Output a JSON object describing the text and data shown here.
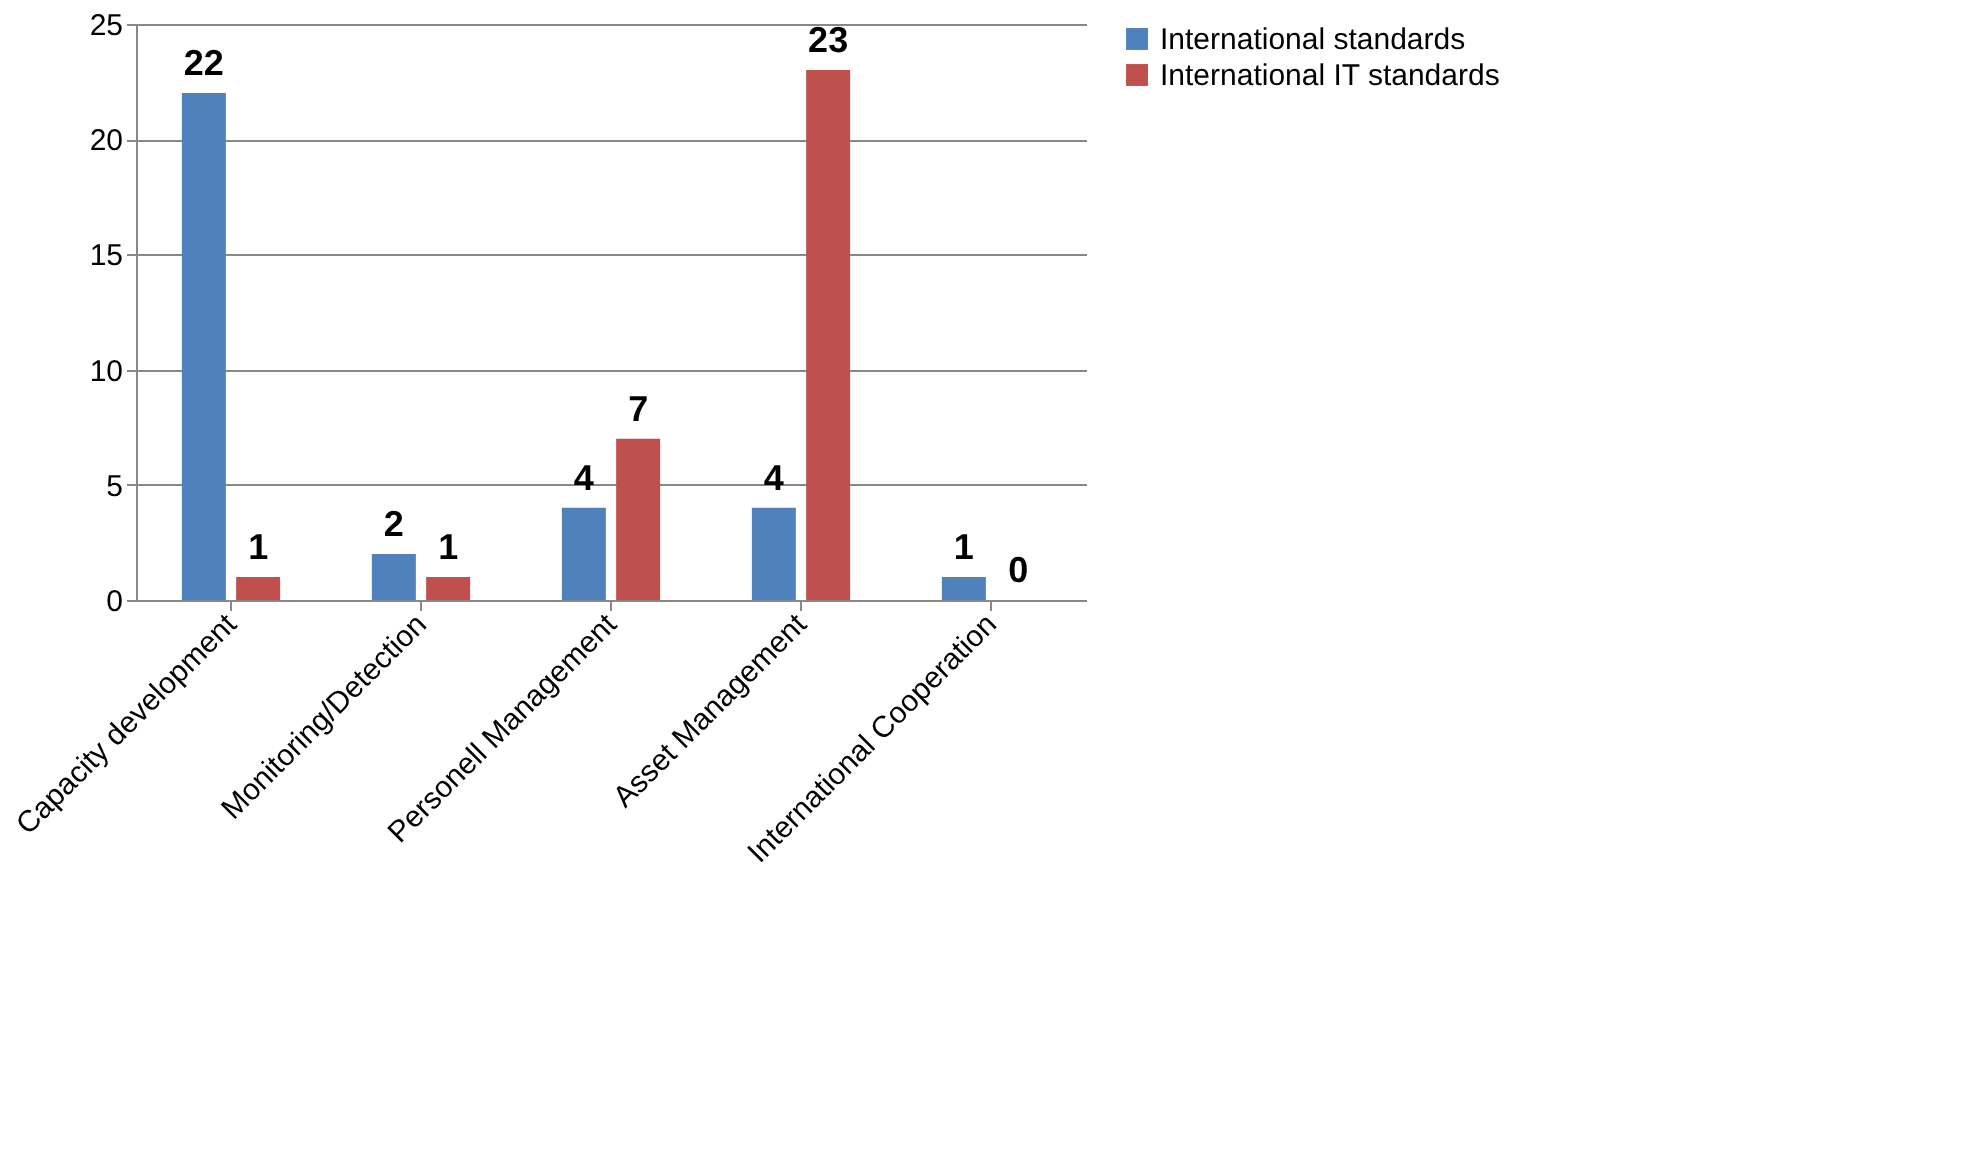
{
  "chart_data": {
    "type": "bar",
    "categories": [
      "Capacity development",
      "Monitoring/Detection",
      "Personell Management",
      "Asset Management",
      "International Cooperation"
    ],
    "series": [
      {
        "name": "International standards",
        "color": "#4f81bd",
        "values": [
          22,
          2,
          4,
          4,
          1
        ]
      },
      {
        "name": "International IT standards",
        "color": "#c0504d",
        "values": [
          1,
          1,
          7,
          23,
          0
        ]
      }
    ],
    "ylim": [
      0,
      25
    ],
    "yticks": [
      0,
      5,
      10,
      15,
      20,
      25
    ],
    "grid": "y",
    "legend": "right",
    "data_labels": true
  }
}
